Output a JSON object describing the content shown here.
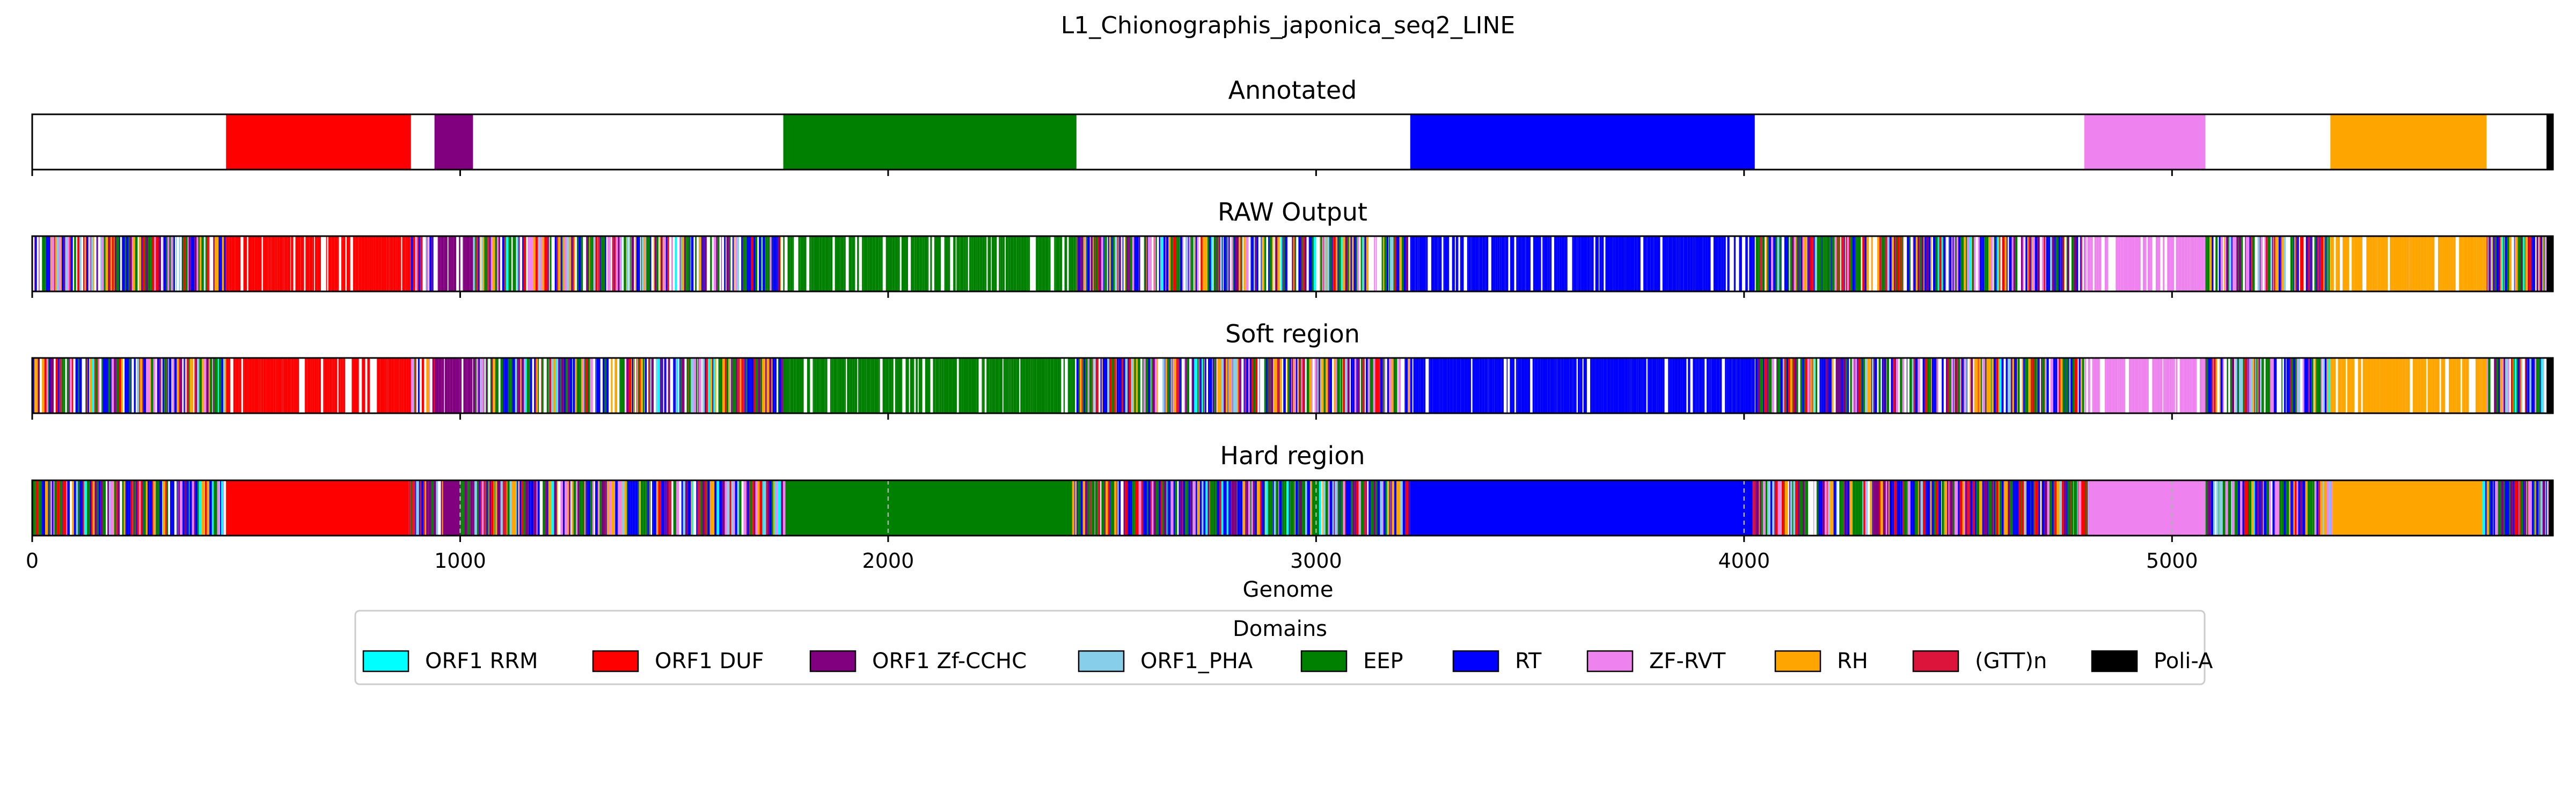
{
  "chart_data": {
    "type": "bar",
    "title": "L1_Chionographis_japonica_seq2_LINE",
    "xlabel": "Genome",
    "xlim": [
      0,
      5890
    ],
    "xticks": [
      0,
      1000,
      2000,
      3000,
      4000,
      5000
    ],
    "colors": {
      "ORF1 RRM": "#00ffff",
      "ORF1 DUF": "#ff0000",
      "ORF1 Zf-CCHC": "#800080",
      "ORF1_PHA": "#87ceeb",
      "EEP": "#008000",
      "RT": "#0000ff",
      "ZF-RVT": "#ee82ee",
      "RH": "#ffa500",
      "(GTT)n": "#dc143c",
      "Poli-A": "#000000"
    },
    "legend": {
      "title": "Domains",
      "placement": "lower-center",
      "entries": [
        "ORF1 RRM",
        "ORF1 DUF",
        "ORF1 Zf-CCHC",
        "ORF1_PHA",
        "EEP",
        "RT",
        "ZF-RVT",
        "RH",
        "(GTT)n",
        "Poli-A"
      ]
    },
    "panels": [
      {
        "name": "Annotated",
        "segments": [
          {
            "domain": "ORF1 DUF",
            "start": 453,
            "end": 885
          },
          {
            "domain": "ORF1 Zf-CCHC",
            "start": 940,
            "end": 1030
          },
          {
            "domain": "EEP",
            "start": 1755,
            "end": 2440
          },
          {
            "domain": "RT",
            "start": 3220,
            "end": 4025
          },
          {
            "domain": "ZF-RVT",
            "start": 4795,
            "end": 5078
          },
          {
            "domain": "RH",
            "start": 5370,
            "end": 5735
          },
          {
            "domain": "Poli-A",
            "start": 5875,
            "end": 5890
          }
        ]
      },
      {
        "name": "RAW Output",
        "background": "noisy",
        "segments": [
          {
            "domain": "ORF1 DUF",
            "start": 453,
            "end": 885,
            "density": 0.85
          },
          {
            "domain": "ORF1 Zf-CCHC",
            "start": 940,
            "end": 1030,
            "density": 0.8
          },
          {
            "domain": "EEP",
            "start": 1755,
            "end": 2440,
            "density": 0.82
          },
          {
            "domain": "RT",
            "start": 3220,
            "end": 4025,
            "density": 0.85
          },
          {
            "domain": "ZF-RVT",
            "start": 4795,
            "end": 5078,
            "density": 0.7
          },
          {
            "domain": "RH",
            "start": 5370,
            "end": 5735,
            "density": 0.85
          },
          {
            "domain": "Poli-A",
            "start": 5875,
            "end": 5890,
            "density": 1
          }
        ]
      },
      {
        "name": "Soft region",
        "background": "noisy",
        "segments": [
          {
            "domain": "ORF1 DUF",
            "start": 453,
            "end": 885,
            "density": 0.87
          },
          {
            "domain": "ORF1 Zf-CCHC",
            "start": 940,
            "end": 1030,
            "density": 0.8
          },
          {
            "domain": "EEP",
            "start": 1755,
            "end": 2440,
            "density": 0.85
          },
          {
            "domain": "RT",
            "start": 3220,
            "end": 4025,
            "density": 0.87
          },
          {
            "domain": "ZF-RVT",
            "start": 4795,
            "end": 5078,
            "density": 0.72
          },
          {
            "domain": "RH",
            "start": 5370,
            "end": 5735,
            "density": 0.87
          },
          {
            "domain": "Poli-A",
            "start": 5875,
            "end": 5890,
            "density": 1
          }
        ]
      },
      {
        "name": "Hard region",
        "background": "noisy-dense",
        "segments": [
          {
            "domain": "ORF1 DUF",
            "start": 453,
            "end": 880,
            "density": 1
          },
          {
            "domain": "ORF1 Zf-CCHC",
            "start": 960,
            "end": 1000,
            "density": 1
          },
          {
            "domain": "EEP",
            "start": 1760,
            "end": 2430,
            "density": 1
          },
          {
            "domain": "RT",
            "start": 3220,
            "end": 4020,
            "density": 1
          },
          {
            "domain": "ZF-RVT",
            "start": 4805,
            "end": 5070,
            "density": 1
          },
          {
            "domain": "RH",
            "start": 5375,
            "end": 5725,
            "density": 1
          },
          {
            "domain": "Poli-A",
            "start": 5880,
            "end": 5890,
            "density": 1
          }
        ]
      }
    ]
  }
}
